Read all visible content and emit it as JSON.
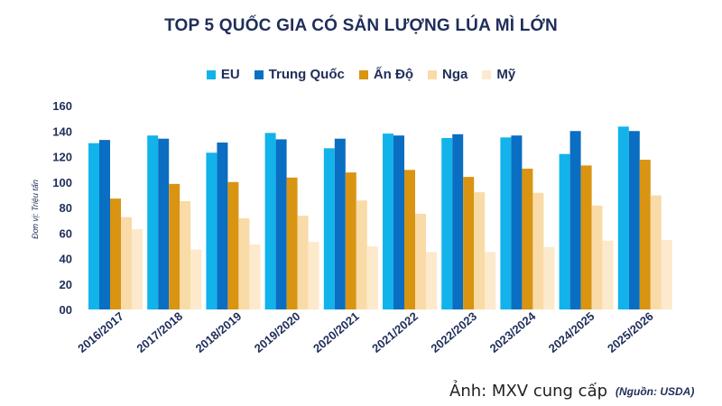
{
  "chart_data": {
    "type": "bar",
    "title": "TOP 5 QUỐC GIA CÓ SẢN LƯỢNG LÚA MÌ LỚN",
    "ylabel": "Đơn vị: Triệu tấn",
    "xlabel": "",
    "ylim": [
      0,
      160
    ],
    "yticks": [
      "00",
      "20",
      "40",
      "60",
      "80",
      "100",
      "120",
      "140",
      "160"
    ],
    "ytick_values": [
      0,
      20,
      40,
      60,
      80,
      100,
      120,
      140,
      160
    ],
    "grid": false,
    "legend_position": "top-center",
    "categories": [
      "2016/2017",
      "2017/2018",
      "2018/2019",
      "2019/2020",
      "2020/2021",
      "2021/2022",
      "2022/2023",
      "2023/2024",
      "2024/2025",
      "2025/2026"
    ],
    "series": [
      {
        "name": "EU",
        "color": "#12b3eb",
        "values": [
          130.5,
          136.5,
          123,
          138.5,
          126.5,
          138,
          134.5,
          135,
          122,
          143.5
        ]
      },
      {
        "name": "Trung Quốc",
        "color": "#0a6ec2",
        "values": [
          133,
          134,
          131,
          133.5,
          134,
          136.5,
          137.5,
          136.5,
          140,
          140
        ]
      },
      {
        "name": "Ấn Độ",
        "color": "#d99412",
        "values": [
          87,
          98.5,
          100,
          103.5,
          107.5,
          109.5,
          104,
          110.5,
          113,
          117.5
        ]
      },
      {
        "name": "Nga",
        "color": "#f9dba8",
        "values": [
          72.5,
          85,
          71.5,
          73.5,
          85.5,
          75,
          92,
          91.5,
          81.5,
          89.5
        ]
      },
      {
        "name": "Mỹ",
        "color": "#fde9cc",
        "values": [
          63,
          47,
          51,
          53,
          49.5,
          45,
          45,
          49,
          54,
          54.5
        ]
      }
    ]
  },
  "caption": "Ảnh: MXV cung cấp",
  "source": "(Nguồn: USDA)"
}
